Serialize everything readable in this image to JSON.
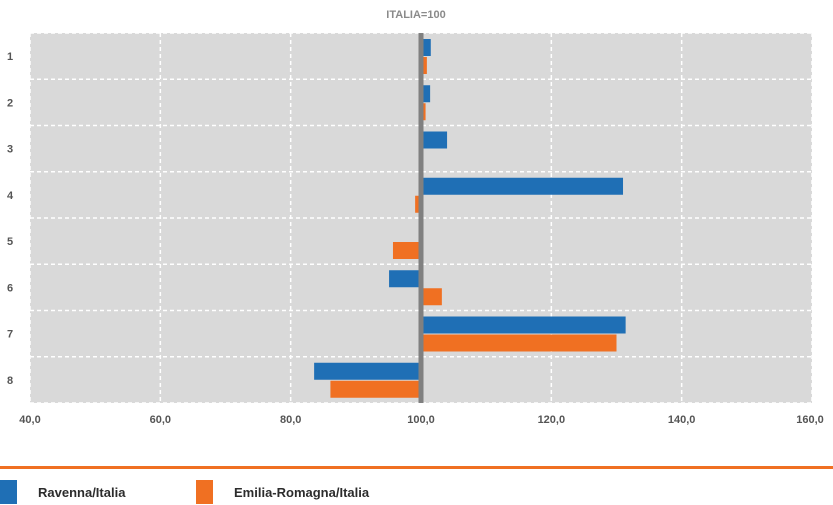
{
  "chart_data": {
    "type": "bar",
    "orientation": "horizontal",
    "title": "ITALIA=100",
    "baseline": 100,
    "categories": [
      "1",
      "2",
      "3",
      "4",
      "5",
      "6",
      "7",
      "8"
    ],
    "xlim": [
      40,
      160
    ],
    "xticks": [
      "40,0",
      "60,0",
      "80,0",
      "100,0",
      "120,0",
      "140,0",
      "160,0"
    ],
    "xtick_values": [
      40,
      60,
      80,
      100,
      120,
      140,
      160
    ],
    "grid": true,
    "legend_position": "bottom",
    "series": [
      {
        "name": "Ravenna/Italia",
        "color": "#1f6fb5",
        "values": [
          101.5,
          101.4,
          104.0,
          131.0,
          100.0,
          95.1,
          131.4,
          83.6
        ]
      },
      {
        "name": "Emilia-Romagna/Italia",
        "color": "#f07022",
        "values": [
          100.9,
          100.7,
          100.0,
          99.1,
          95.7,
          103.2,
          130.0,
          86.1
        ]
      }
    ]
  }
}
